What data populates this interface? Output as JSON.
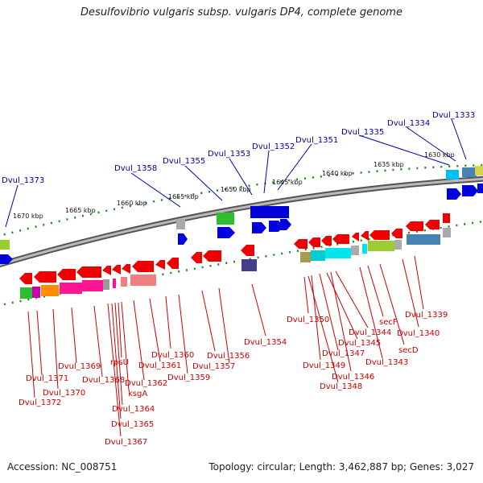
{
  "title": "Desulfovibrio vulgaris subsp. vulgaris DP4, complete genome",
  "footer": {
    "accession": "Accession: NC_008751",
    "summary": "Topology: circular; Length: 3,462,887 bp; Genes: 3,027"
  },
  "kbp_labels": [
    "1670 kbp",
    "1665 kbp",
    "1660 kbp",
    "1655 kbp",
    "1650 kbp",
    "1645 kbp",
    "1640 kbp",
    "1635 kbp",
    "1630 kbp"
  ],
  "top_genes": [
    "Dvul_1373",
    "Dvul_1358",
    "Dvul_1355",
    "Dvul_1353",
    "Dvul_1352",
    "Dvul_1351",
    "Dvul_1335",
    "Dvul_1334",
    "Dvul_1333"
  ],
  "bottom_genes": [
    "Dvul_1350",
    "Dvul_1349",
    "Dvul_1347",
    "Dvul_1345",
    "Dvul_1344",
    "Dvul_1346",
    "Dvul_1348",
    "secF",
    "Dvul_1343",
    "Dvul_1339",
    "Dvul_1340",
    "secD",
    "Dvul_1354",
    "Dvul_1360",
    "Dvul_1356",
    "Dvul_1357",
    "Dvul_1359",
    "Dvul_1361",
    "Dvul_1362",
    "rpsU",
    "Dvul_1368",
    "ksgA",
    "Dvul_1364",
    "Dvul_1365",
    "Dvul_1367",
    "Dvul_1369",
    "Dvul_1370",
    "Dvul_1371",
    "Dvul_1372"
  ],
  "colors": {
    "forward_gene": "#0000dd",
    "reverse_gene": "#ee0000",
    "top_label": "#0000aa",
    "bottom_label": "#cc0000",
    "backbone": "#888888"
  }
}
